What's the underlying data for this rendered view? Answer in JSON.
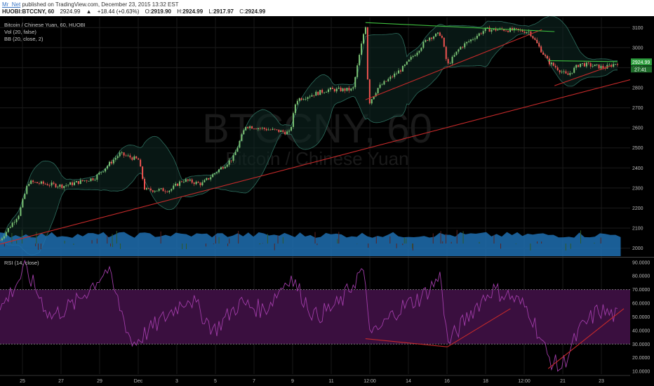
{
  "header": {
    "author": "Mr_Net",
    "published": "published on TradingView.com, December 23, 2015 13:32 EST",
    "symbol": "HUOBI:BTCCNY, 60",
    "price": "2924.99",
    "change": "+18.44 (+0.63%)",
    "open_label": "O:",
    "open": "2919.90",
    "high_label": "H:",
    "high": "2924.99",
    "low_label": "L:",
    "low": "2917.97",
    "close_label": "C:",
    "close": "2924.99"
  },
  "legend": {
    "title": "Bitcoin / Chinese Yuan, 60, HUOBI",
    "vol": "Vol (20, false)",
    "bb": "BB (20, close, 2)",
    "rsi": "RSI (14, close)"
  },
  "watermark": {
    "big": "BTCCNY, 60",
    "small": "Bitcoin / Chinese Yuan"
  },
  "price_badges": {
    "last": "2924.99",
    "countdown": "27:41"
  },
  "colors": {
    "candle_up": "#7cc576",
    "candle_down": "#ef5350",
    "volume": "#1f6fb0",
    "bb_band": "#2e6e5e",
    "rsi_line": "#a03ca8",
    "rsi_fill": "#3a0f3f",
    "trend_red": "#c62a2a",
    "trend_green": "#3fbf3f",
    "badge_green": "#2e9e3e"
  },
  "chart_data": [
    {
      "type": "line",
      "subtype": "candlestick",
      "title": "Bitcoin / Chinese Yuan, 60, HUOBI",
      "x_ticks": [
        "25",
        "27",
        "29",
        "Dec",
        "3",
        "5",
        "7",
        "9",
        "11",
        "12:00",
        "14",
        "16",
        "18",
        "12:00",
        "21",
        "23"
      ],
      "y_ticks": [
        2000,
        2100,
        2200,
        2300,
        2400,
        2500,
        2600,
        2700,
        2800,
        2900,
        3000,
        3100
      ],
      "ylim": [
        1960,
        3150
      ],
      "series": [
        {
          "name": "BTCCNY",
          "keypoints": [
            [
              0,
              2040
            ],
            [
              0.03,
              2170
            ],
            [
              0.045,
              2330
            ],
            [
              0.1,
              2310
            ],
            [
              0.15,
              2350
            ],
            [
              0.19,
              2470
            ],
            [
              0.22,
              2440
            ],
            [
              0.23,
              2290
            ],
            [
              0.27,
              2290
            ],
            [
              0.29,
              2340
            ],
            [
              0.32,
              2320
            ],
            [
              0.37,
              2450
            ],
            [
              0.39,
              2610
            ],
            [
              0.43,
              2590
            ],
            [
              0.46,
              2575
            ],
            [
              0.47,
              2740
            ],
            [
              0.52,
              2790
            ],
            [
              0.56,
              2790
            ],
            [
              0.58,
              3120
            ],
            [
              0.585,
              2720
            ],
            [
              0.6,
              2800
            ],
            [
              0.64,
              2900
            ],
            [
              0.68,
              3050
            ],
            [
              0.7,
              3070
            ],
            [
              0.71,
              2910
            ],
            [
              0.73,
              3000
            ],
            [
              0.77,
              3090
            ],
            [
              0.8,
              3090
            ],
            [
              0.84,
              3080
            ],
            [
              0.87,
              2930
            ],
            [
              0.9,
              2860
            ],
            [
              0.92,
              2920
            ],
            [
              0.96,
              2900
            ],
            [
              0.98,
              2925
            ]
          ]
        },
        {
          "name": "Vol",
          "values_range": [
            2030,
            2090
          ]
        }
      ],
      "trendlines": [
        {
          "color": "red",
          "from": [
            0,
            2020
          ],
          "to": [
            1,
            2840
          ]
        },
        {
          "color": "red",
          "from": [
            0.58,
            2740
          ],
          "to": [
            0.86,
            3090
          ]
        },
        {
          "color": "red",
          "from": [
            0.88,
            2810
          ],
          "to": [
            0.97,
            2910
          ]
        },
        {
          "color": "green",
          "from": [
            0.58,
            3125
          ],
          "to": [
            0.88,
            3080
          ]
        },
        {
          "color": "green",
          "from": [
            0.87,
            2935
          ],
          "to": [
            0.98,
            2930
          ]
        }
      ]
    },
    {
      "type": "line",
      "title": "RSI (14, close)",
      "y_ticks": [
        "10.0000",
        "20.0000",
        "30.0000",
        "40.0000",
        "50.0000",
        "60.0000",
        "70.0000",
        "80.0000",
        "90.0000"
      ],
      "ylim": [
        8,
        93
      ],
      "band": [
        30,
        70
      ],
      "series": [
        {
          "name": "RSI",
          "keypoints": [
            [
              0,
              55
            ],
            [
              0.04,
              85
            ],
            [
              0.08,
              50
            ],
            [
              0.12,
              60
            ],
            [
              0.17,
              85
            ],
            [
              0.21,
              30
            ],
            [
              0.25,
              45
            ],
            [
              0.3,
              65
            ],
            [
              0.34,
              40
            ],
            [
              0.38,
              60
            ],
            [
              0.42,
              55
            ],
            [
              0.46,
              80
            ],
            [
              0.5,
              50
            ],
            [
              0.54,
              60
            ],
            [
              0.575,
              85
            ],
            [
              0.59,
              35
            ],
            [
              0.63,
              55
            ],
            [
              0.67,
              65
            ],
            [
              0.7,
              80
            ],
            [
              0.71,
              30
            ],
            [
              0.75,
              55
            ],
            [
              0.78,
              70
            ],
            [
              0.81,
              65
            ],
            [
              0.84,
              55
            ],
            [
              0.87,
              20
            ],
            [
              0.89,
              12
            ],
            [
              0.92,
              40
            ],
            [
              0.95,
              55
            ],
            [
              0.98,
              50
            ]
          ]
        }
      ],
      "trendlines": [
        {
          "color": "red",
          "from": [
            0.58,
            34
          ],
          "to": [
            0.71,
            28
          ]
        },
        {
          "color": "red",
          "from": [
            0.71,
            28
          ],
          "to": [
            0.81,
            56
          ]
        },
        {
          "color": "red",
          "from": [
            0.87,
            12
          ],
          "to": [
            0.99,
            56
          ]
        }
      ]
    }
  ]
}
